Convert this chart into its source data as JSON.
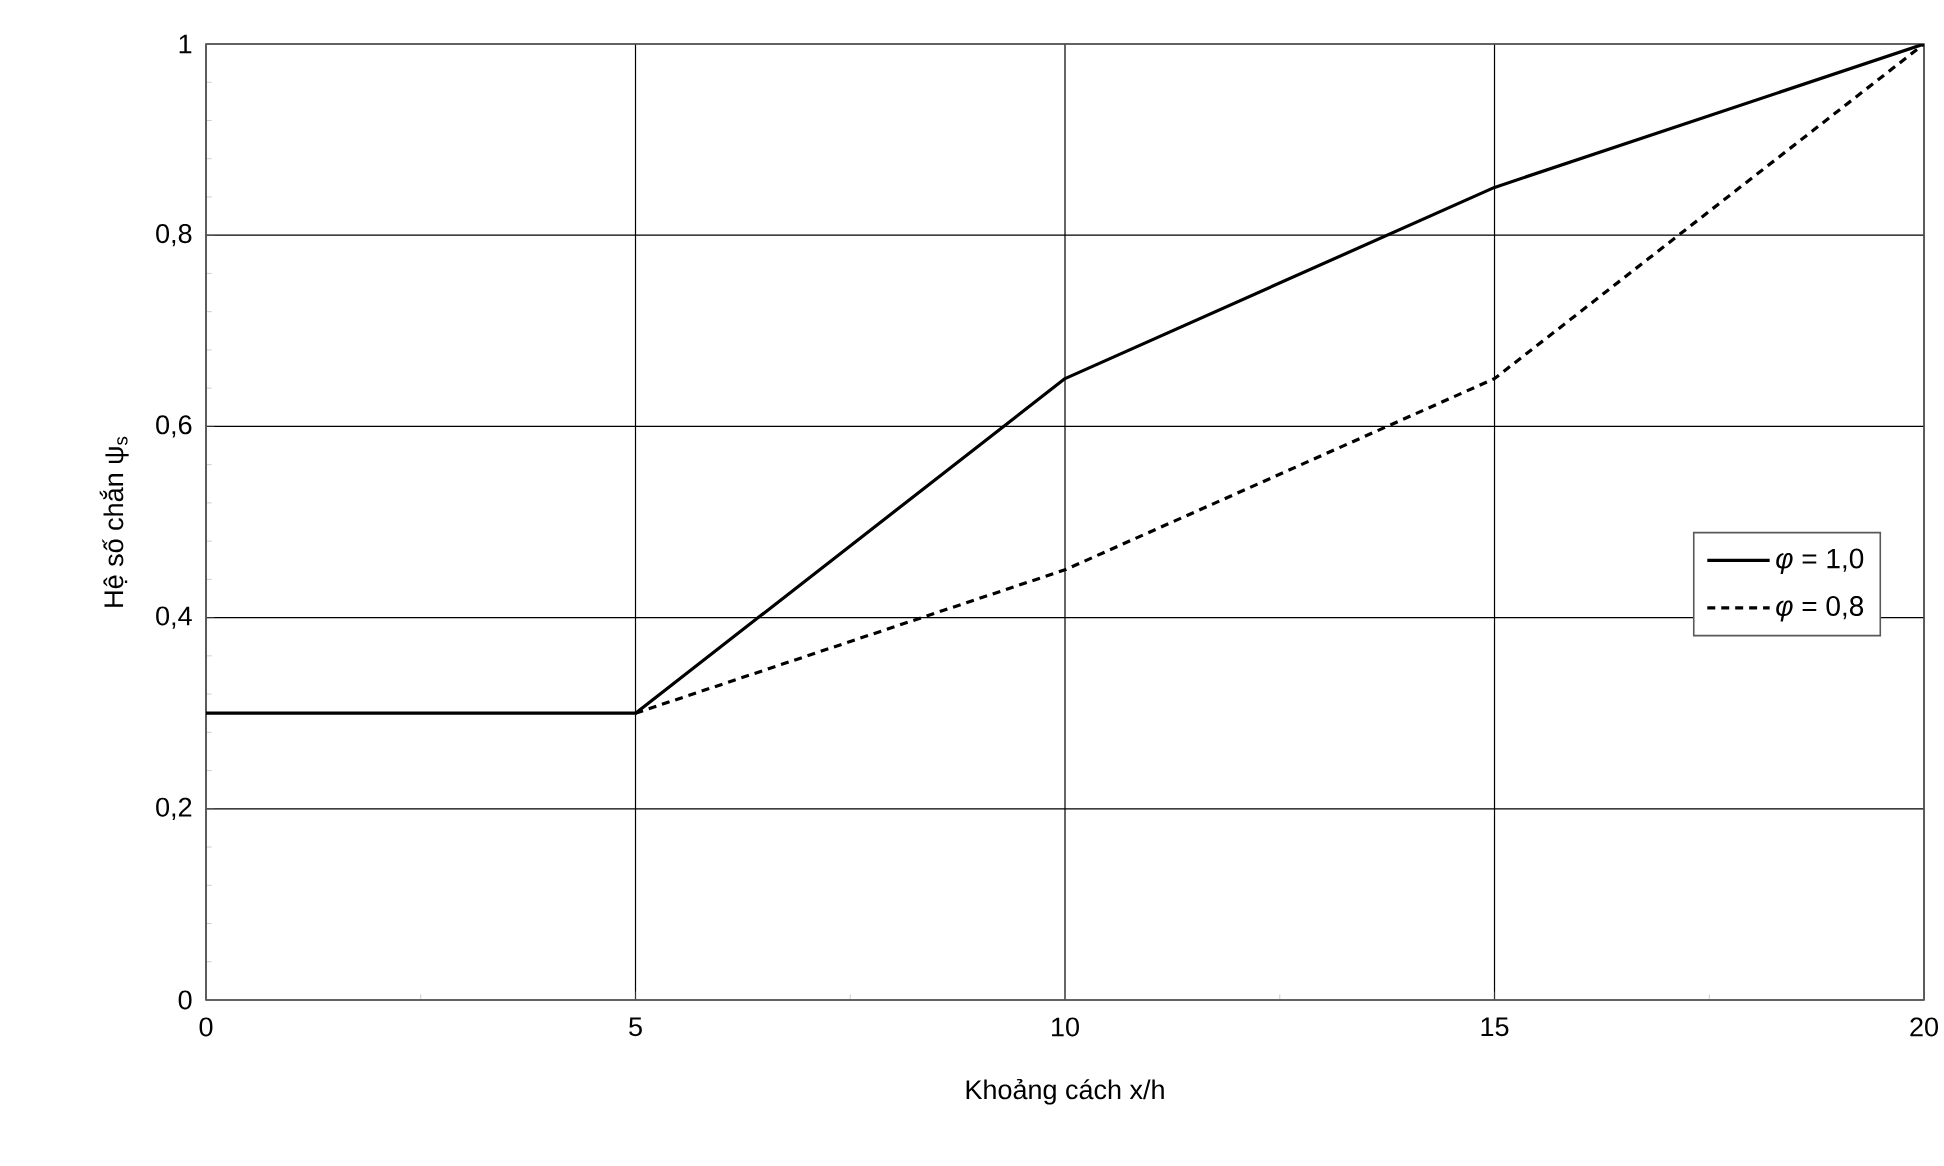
{
  "chart_data": {
    "type": "line",
    "xlabel": "Khoảng cách x/h",
    "ylabel": "Hệ số chắn ψ$_{s}$",
    "xlim": [
      0,
      20
    ],
    "xticks": [
      0,
      5,
      10,
      15,
      20
    ],
    "ylim": [
      0,
      1
    ],
    "yticks": [
      0,
      {
        "value": 0.2,
        "label": "0,2"
      },
      {
        "value": 0.4,
        "label": "0,4"
      },
      {
        "value": 0.6,
        "label": "0,6"
      },
      {
        "value": 0.8,
        "label": "0,8"
      },
      1
    ],
    "grid": true,
    "legend": "right",
    "marker": "none",
    "series": [
      {
        "name": "*φ* = 1,0",
        "color": "#000000",
        "line_style": "solid",
        "x": [
          0,
          5,
          10,
          15,
          20
        ],
        "values": [
          0.3,
          0.3,
          0.65,
          0.85,
          1.0
        ]
      },
      {
        "name": "*φ* = 0,8",
        "color": "#000000",
        "line_style": "dashed",
        "x": [
          5,
          10,
          15,
          20
        ],
        "values": [
          0.3,
          0.45,
          0.65,
          1.0
        ]
      }
    ]
  }
}
